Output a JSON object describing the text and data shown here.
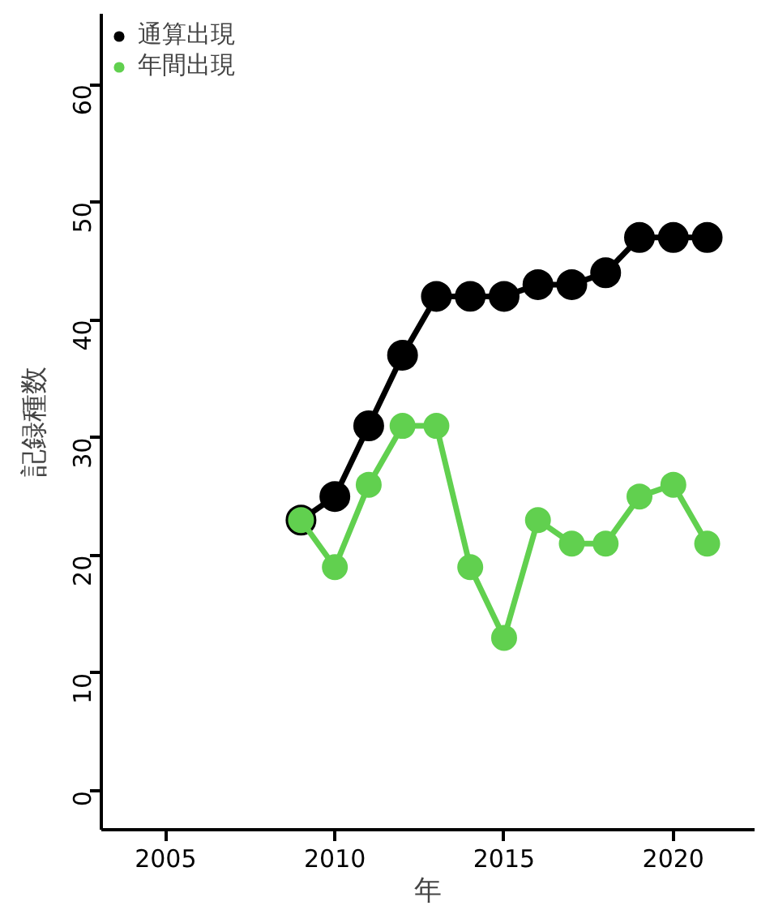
{
  "chart_data": {
    "type": "line",
    "xlabel": "年",
    "ylabel": "記録種数",
    "x": [
      2009,
      2010,
      2011,
      2012,
      2013,
      2014,
      2015,
      2016,
      2017,
      2018,
      2019,
      2020,
      2021
    ],
    "series": [
      {
        "name": "通算出現",
        "color": "#000000",
        "values": [
          23,
          25,
          31,
          37,
          42,
          42,
          42,
          43,
          43,
          44,
          47,
          47,
          47
        ]
      },
      {
        "name": "年間出現",
        "color": "#61d04f",
        "values": [
          23,
          19,
          26,
          31,
          31,
          19,
          13,
          23,
          21,
          21,
          25,
          26,
          21
        ]
      }
    ],
    "xlim": [
      2003.1,
      2022.4
    ],
    "ylim": [
      -3.3,
      66
    ],
    "xticks": [
      2005,
      2010,
      2015,
      2020
    ],
    "yticks": [
      0,
      10,
      20,
      30,
      40,
      50,
      60
    ],
    "grid": false,
    "legend": "top left",
    "marker": "circle",
    "line_style": "solid"
  }
}
